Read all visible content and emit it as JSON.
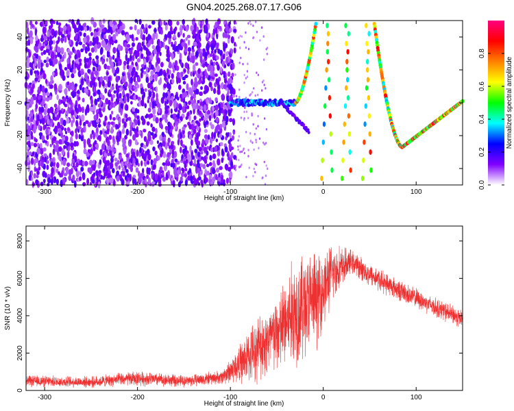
{
  "figure": {
    "title": "GN04.2025.268.07.17.G06"
  },
  "chart_data": [
    {
      "type": "heatmap",
      "xlabel": "Height of straight line (km)",
      "ylabel": "Frequency (Hz)",
      "xlim": [
        -320,
        150
      ],
      "ylim": [
        -50,
        50
      ],
      "xticks": [
        -300,
        -200,
        -100,
        0,
        100
      ],
      "yticks": [
        -40,
        -20,
        0,
        20,
        40
      ],
      "colorbar": {
        "label": "Normalized spectral amplitude",
        "range": [
          0,
          1
        ],
        "ticks": [
          0.0,
          0.2,
          0.4,
          0.6,
          0.8
        ],
        "colors": [
          "#ffffff",
          "#8000ff",
          "#0000ff",
          "#00ffff",
          "#00ff00",
          "#ffff00",
          "#ff8000",
          "#ff0000",
          "#ff0080"
        ]
      },
      "features": {
        "noise_region_x": [
          -320,
          -95
        ],
        "direct_tone": {
          "x": [
            -100,
            -30
          ],
          "freq": 0
        },
        "fade_branch": {
          "x": [
            -45,
            -15
          ],
          "freq_start": 0,
          "freq_end": -18
        },
        "rising_chirp": {
          "x": [
            -30,
            -8
          ],
          "freq_start": 0,
          "freq_end": 48
        },
        "aliased_streaks_x": [
          -10,
          55
        ],
        "descending_chirp": {
          "x": [
            55,
            85
          ],
          "freq_start": 48,
          "freq_end": -27
        },
        "minimum": {
          "x": 85,
          "freq": -27
        },
        "recovery": {
          "x": [
            85,
            150
          ],
          "freq_start": -27,
          "freq_end": 1
        }
      }
    },
    {
      "type": "line",
      "xlabel": "Height of straight line (km)",
      "ylabel": "SNR (10 * v/v)",
      "xlim": [
        -320,
        150
      ],
      "ylim": [
        0,
        8800
      ],
      "xticks": [
        -300,
        -200,
        -100,
        0,
        100
      ],
      "yticks": [
        0,
        2000,
        4000,
        6000,
        8000
      ],
      "series": [
        {
          "color": "#ee3030",
          "envelope": [
            {
              "x": -320,
              "mean": 500,
              "spread": 300
            },
            {
              "x": -250,
              "mean": 450,
              "spread": 280
            },
            {
              "x": -200,
              "mean": 650,
              "spread": 380
            },
            {
              "x": -150,
              "mean": 500,
              "spread": 300
            },
            {
              "x": -110,
              "mean": 700,
              "spread": 350
            },
            {
              "x": -90,
              "mean": 1400,
              "spread": 1000
            },
            {
              "x": -70,
              "mean": 2300,
              "spread": 1700
            },
            {
              "x": -50,
              "mean": 3000,
              "spread": 2000
            },
            {
              "x": -30,
              "mean": 4300,
              "spread": 3000
            },
            {
              "x": -20,
              "mean": 4600,
              "spread": 2800
            },
            {
              "x": -5,
              "mean": 5000,
              "spread": 2300
            },
            {
              "x": 10,
              "mean": 6300,
              "spread": 1500
            },
            {
              "x": 30,
              "mean": 6900,
              "spread": 600
            },
            {
              "x": 50,
              "mean": 6200,
              "spread": 600
            },
            {
              "x": 80,
              "mean": 5400,
              "spread": 550
            },
            {
              "x": 110,
              "mean": 4700,
              "spread": 500
            },
            {
              "x": 150,
              "mean": 3800,
              "spread": 500
            }
          ]
        }
      ]
    }
  ]
}
